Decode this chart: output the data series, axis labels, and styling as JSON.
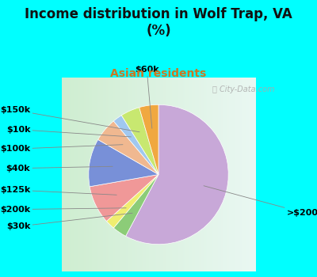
{
  "title": "Income distribution in Wolf Trap, VA\n(%)",
  "subtitle": "Asian residents",
  "title_color": "#111111",
  "subtitle_color": "#cc7722",
  "background_color": "#00ffff",
  "chart_bg_left": "#c8e8c8",
  "chart_bg_right": "#f0f8f8",
  "watermark": "ⓘ City-Data.com",
  "labels": [
    ">$200k",
    "$30k",
    "$200k",
    "$125k",
    "$40k",
    "$100k",
    "$10k",
    "$150k",
    "$60k"
  ],
  "values": [
    52,
    3,
    2,
    8,
    10,
    5,
    2,
    4,
    4
  ],
  "colors": [
    "#c8a8d8",
    "#8ccc78",
    "#f0ee70",
    "#f09898",
    "#7890d8",
    "#f0b890",
    "#a0c8f0",
    "#c8e870",
    "#f0a840"
  ],
  "startangle": 90,
  "counterclock": false,
  "label_fontsize": 8,
  "title_fontsize": 12,
  "subtitle_fontsize": 10
}
